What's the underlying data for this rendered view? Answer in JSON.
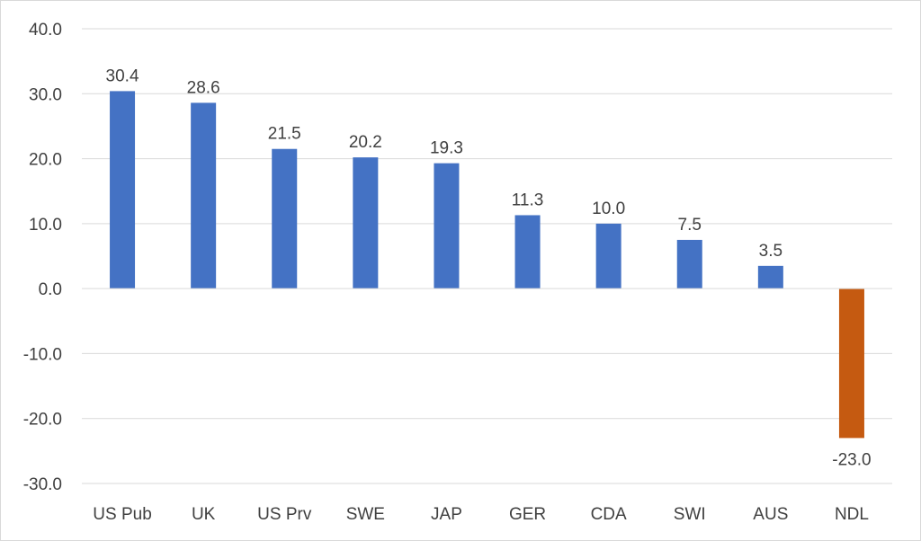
{
  "chart_data": {
    "type": "bar",
    "categories": [
      "US Pub",
      "UK",
      "US Prv",
      "SWE",
      "JAP",
      "GER",
      "CDA",
      "SWI",
      "AUS",
      "NDL"
    ],
    "values": [
      30.4,
      28.6,
      21.5,
      20.2,
      19.3,
      11.3,
      10.0,
      7.5,
      3.5,
      -23.0
    ],
    "data_labels": [
      "30.4",
      "28.6",
      "21.5",
      "20.2",
      "19.3",
      "11.3",
      "10.0",
      "7.5",
      "3.5",
      "-23.0"
    ],
    "title": "",
    "xlabel": "",
    "ylabel": "",
    "ylim": [
      -30,
      40
    ],
    "yticks": [
      40,
      30,
      20,
      10,
      0,
      -10,
      -20,
      -30
    ],
    "ytick_labels": [
      "40.0",
      "30.0",
      "20.0",
      "10.0",
      "0.0",
      "-10.0",
      "-20.0",
      "-30.0"
    ],
    "grid": true,
    "legend": "none",
    "colors": {
      "positive": "#4472c4",
      "negative": "#c55a11",
      "gridline": "#d9d9d9",
      "text": "#404040"
    }
  }
}
